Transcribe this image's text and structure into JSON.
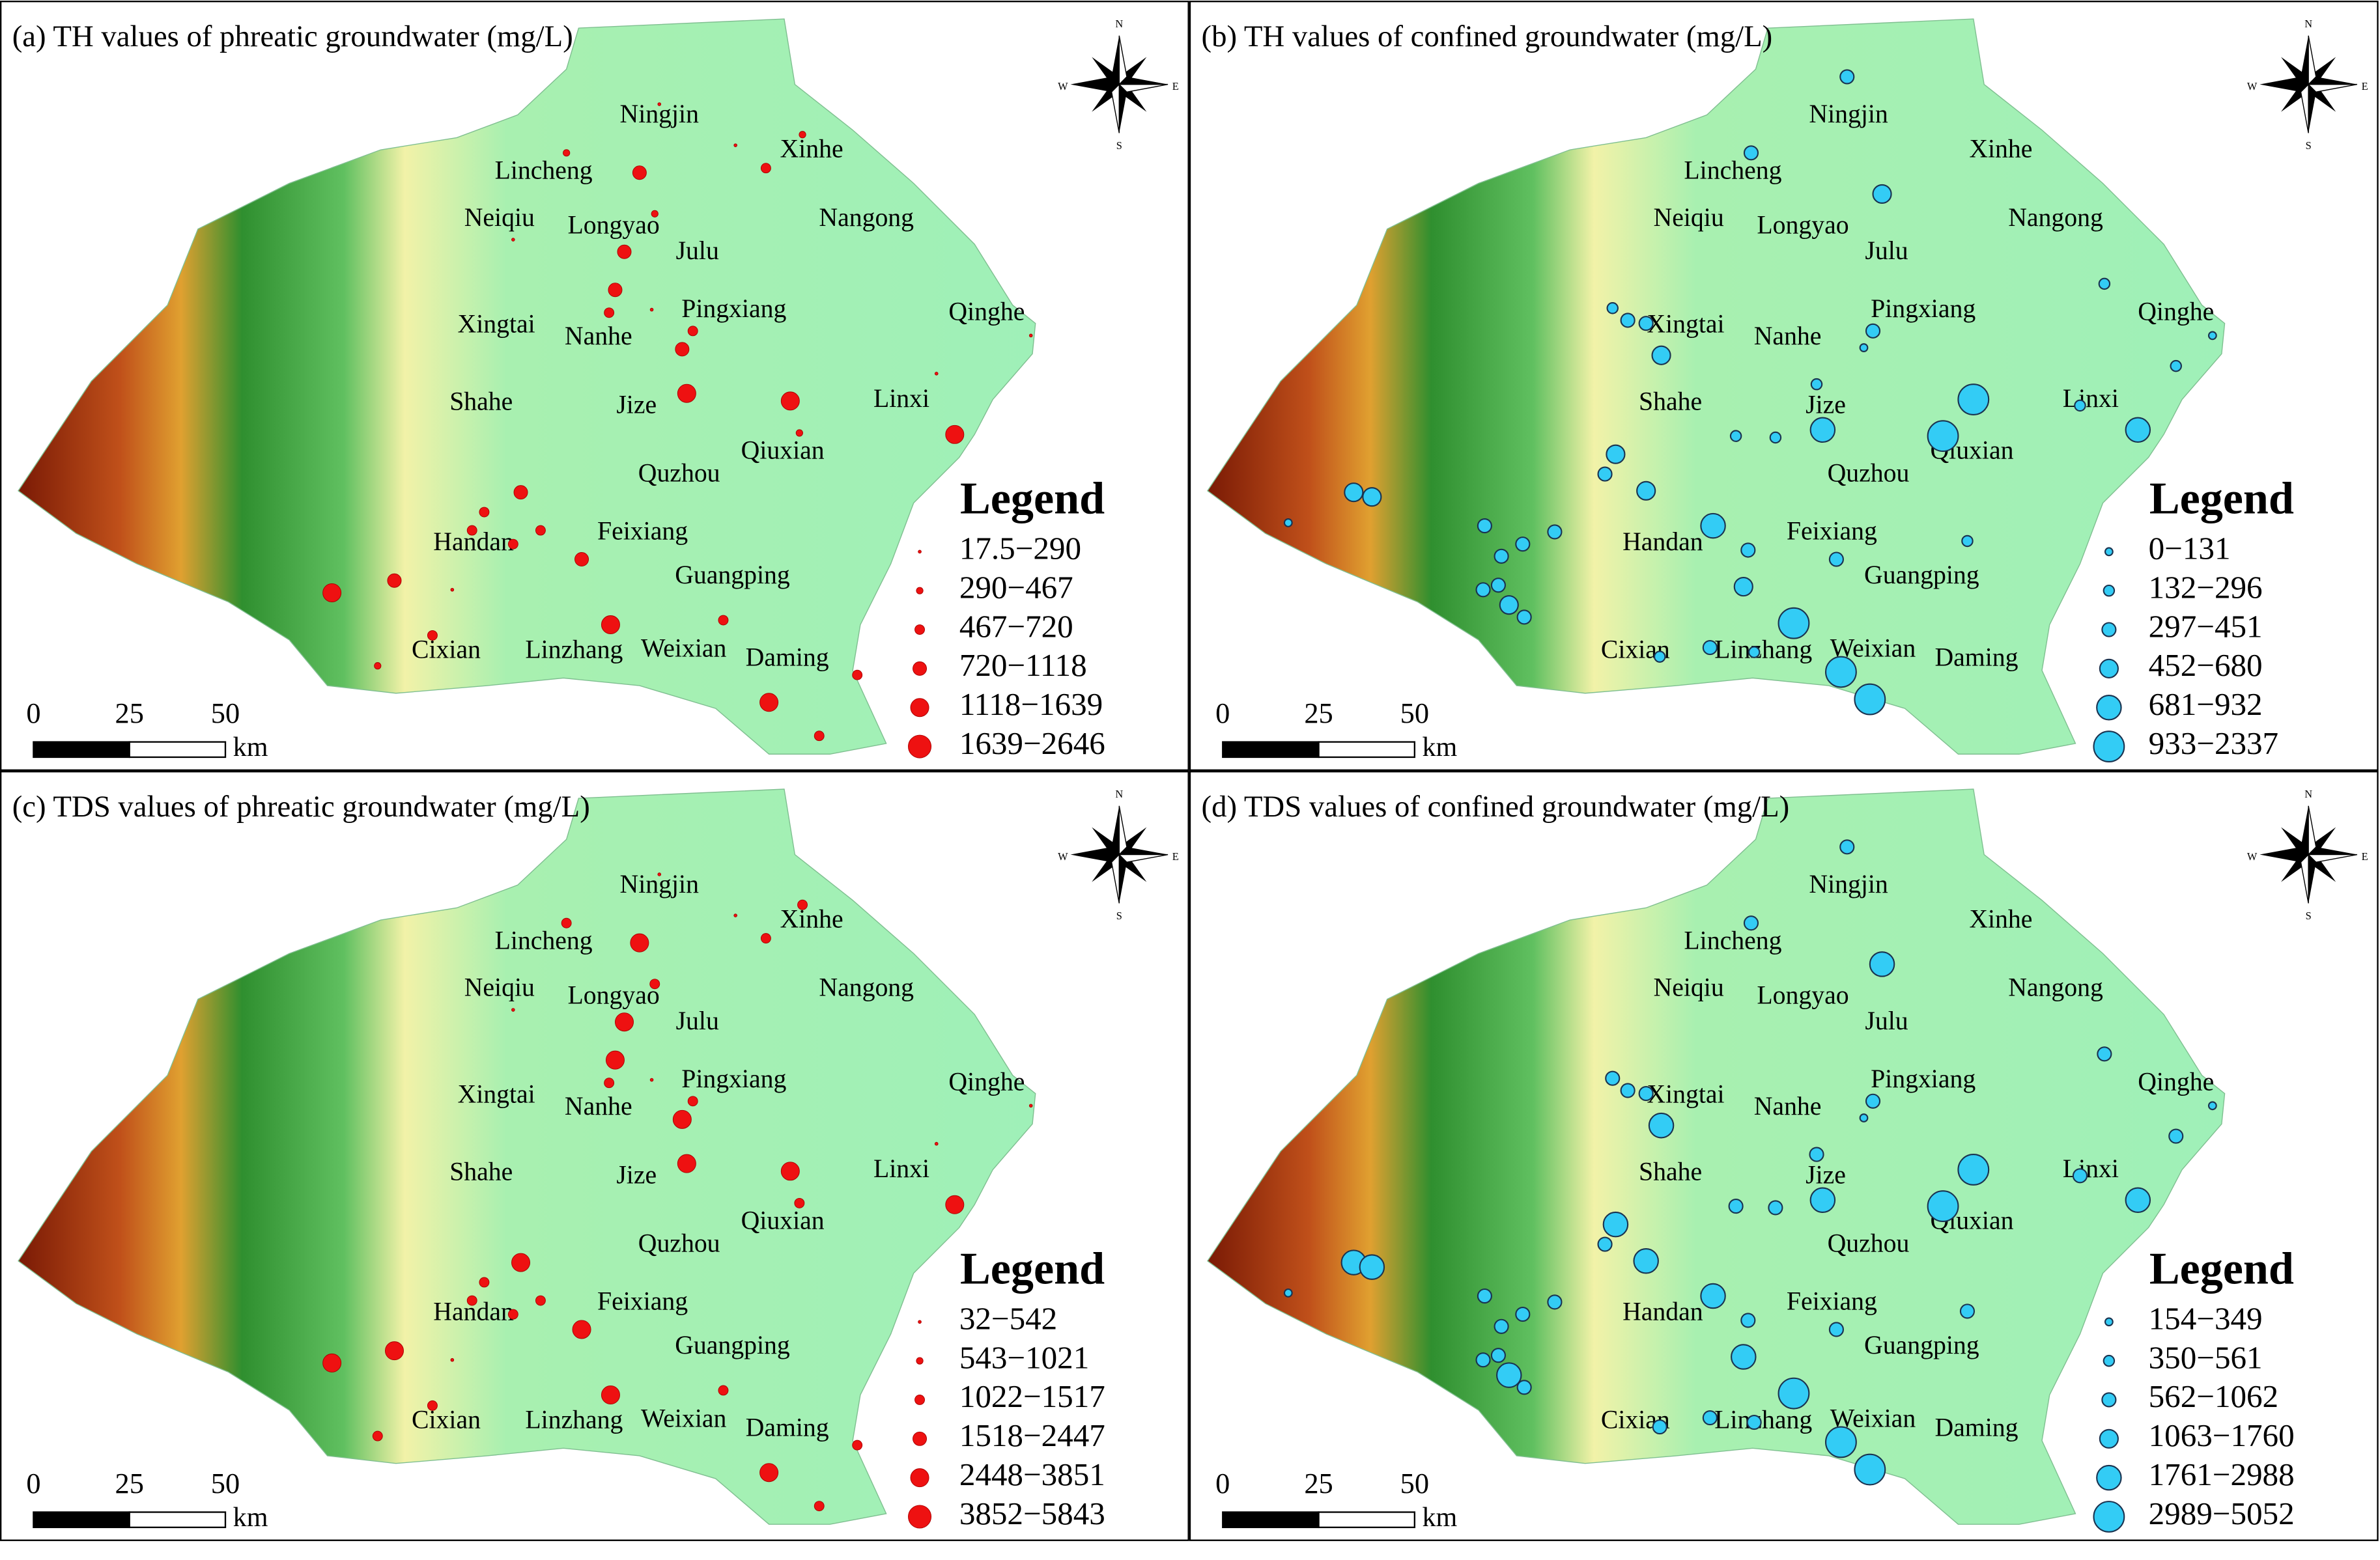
{
  "panels": [
    {
      "title": "(a) TH values of phreatic groundwater (mg/L)",
      "legend_title": "Legend",
      "legend": [
        "17.5−290",
        "290−467",
        "467−720",
        "720−1118",
        "1118−1639",
        "1639−2646"
      ]
    },
    {
      "title": "(b) TH values of confined groundwater (mg/L)",
      "legend_title": "Legend",
      "legend": [
        "0−131",
        "132−296",
        "297−451",
        "452−680",
        "681−932",
        "933−2337"
      ]
    },
    {
      "title": "(c) TDS values of phreatic groundwater (mg/L)",
      "legend_title": "Legend",
      "legend": [
        "32−542",
        "543−1021",
        "1022−1517",
        "1518−2447",
        "2448−3851",
        "3852−5843"
      ]
    },
    {
      "title": "(d) TDS values of confined groundwater (mg/L)",
      "legend_title": "Legend",
      "legend": [
        "154−349",
        "350−561",
        "562−1062",
        "1063−1760",
        "1761−2988",
        "2989−5052"
      ]
    }
  ],
  "places": [
    "Ningjin",
    "Xinhe",
    "Lincheng",
    "Neiqiu",
    "Longyao",
    "Julu",
    "Nangong",
    "Xingtai",
    "Nanhe",
    "Pingxiang",
    "Qinghe",
    "Shahe",
    "Jize",
    "Linxi",
    "Qiuxian",
    "Quzhou",
    "Handan",
    "Feixiang",
    "Guangping",
    "Cixian",
    "Linzhang",
    "Weixian",
    "Daming"
  ],
  "scale_labels": [
    "0",
    "25",
    "50"
  ],
  "scale_unit": "km",
  "compass": {
    "north": "N",
    "south": "S",
    "east": "E",
    "west": "W"
  }
}
